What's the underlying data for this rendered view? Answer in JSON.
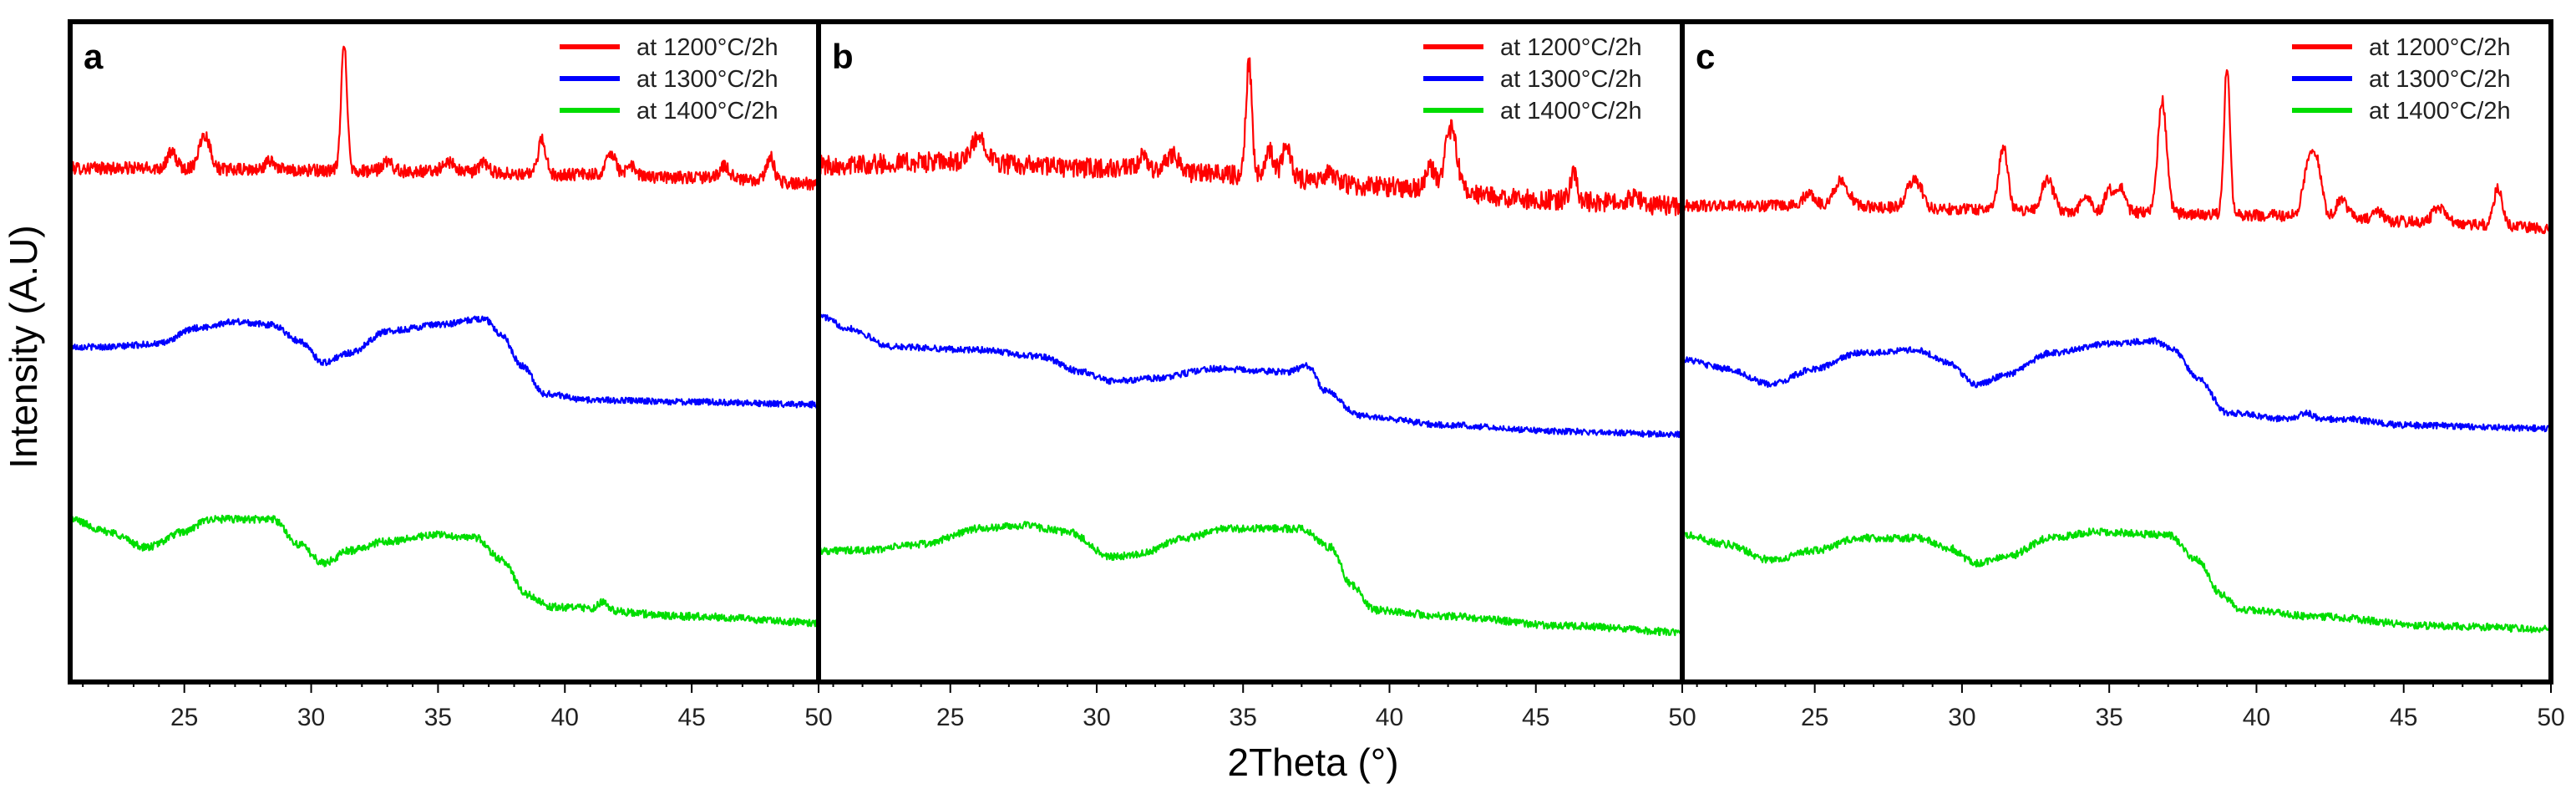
{
  "figure": {
    "ylabel": "Intensity (A.U)",
    "xlabel": "2Theta (°)"
  },
  "chart_data": [
    {
      "type": "line",
      "panel_label": "a",
      "xlim": [
        20.5,
        50
      ],
      "ylim": [
        0,
        100
      ],
      "x_ticks": [
        25,
        30,
        35,
        40,
        45,
        50
      ],
      "x_tick_labels": [
        "25",
        "30",
        "35",
        "40",
        "45",
        "50"
      ],
      "legend_position": "top-right",
      "series": [
        {
          "name": "at 1200°C/2h",
          "color": "#ff0000",
          "baseline": [
            [
              20.5,
              78.5
            ],
            [
              24,
              78.5
            ],
            [
              28,
              78.2
            ],
            [
              34,
              78
            ],
            [
              40,
              77.5
            ],
            [
              45,
              77
            ],
            [
              50,
              76
            ]
          ],
          "peaks": [
            [
              24.5,
              2.5,
              0.18
            ],
            [
              25.8,
              5.5,
              0.22
            ],
            [
              28.4,
              1.5,
              0.2
            ],
            [
              31.3,
              20,
              0.12
            ],
            [
              33.0,
              1.5,
              0.2
            ],
            [
              35.4,
              1.5,
              0.25
            ],
            [
              36.8,
              1.5,
              0.2
            ],
            [
              39.1,
              5.5,
              0.15
            ],
            [
              41.8,
              3.5,
              0.2
            ],
            [
              42.6,
              1.5,
              0.2
            ],
            [
              46.3,
              2,
              0.2
            ],
            [
              48.1,
              4,
              0.15
            ]
          ],
          "noise": 1.0
        },
        {
          "name": "at 1300°C/2h",
          "color": "#0000ff",
          "baseline": [
            [
              20.5,
              50
            ],
            [
              22,
              50
            ],
            [
              24,
              50.5
            ],
            [
              25.5,
              53
            ],
            [
              27,
              54
            ],
            [
              28.5,
              53.5
            ],
            [
              29.5,
              51
            ],
            [
              30.5,
              47.5
            ],
            [
              31.5,
              49
            ],
            [
              33,
              52.5
            ],
            [
              35,
              53.5
            ],
            [
              36.8,
              54.5
            ],
            [
              37.5,
              52
            ],
            [
              38.3,
              47
            ],
            [
              39.2,
              42.5
            ],
            [
              41,
              41.5
            ],
            [
              45,
              41.2
            ],
            [
              50,
              40.8
            ]
          ],
          "peaks": [],
          "noise": 0.5
        },
        {
          "name": "at 1400°C/2h",
          "color": "#00dd00",
          "baseline": [
            [
              20.5,
              22.5
            ],
            [
              22,
              20.5
            ],
            [
              23.5,
              18
            ],
            [
              25,
              20.5
            ],
            [
              26,
              22.5
            ],
            [
              28.5,
              22.5
            ],
            [
              29.5,
              18.5
            ],
            [
              30.5,
              15.5
            ],
            [
              31.5,
              17.5
            ],
            [
              33,
              19
            ],
            [
              35,
              20
            ],
            [
              36.5,
              19.5
            ],
            [
              37.5,
              16
            ],
            [
              38.5,
              10.5
            ],
            [
              39.5,
              8.5
            ],
            [
              45,
              7
            ],
            [
              50,
              6
            ]
          ],
          "peaks": [
            [
              41.5,
              1.2,
              0.2
            ]
          ],
          "noise": 0.6
        }
      ]
    },
    {
      "type": "line",
      "panel_label": "b",
      "xlim": [
        20.5,
        50
      ],
      "ylim": [
        0,
        100
      ],
      "x_ticks": [
        25,
        30,
        35,
        40,
        45,
        50
      ],
      "x_tick_labels": [
        "25",
        "30",
        "35",
        "40",
        "45",
        "50"
      ],
      "legend_position": "top-right",
      "series": [
        {
          "name": "at 1200°C/2h",
          "color": "#ff0000",
          "baseline": [
            [
              20.5,
              79
            ],
            [
              25,
              79.5
            ],
            [
              30,
              78.5
            ],
            [
              35,
              77.5
            ],
            [
              40,
              75.5
            ],
            [
              45,
              73.5
            ],
            [
              50,
              72.5
            ]
          ],
          "peaks": [
            [
              26.0,
              4,
              0.25
            ],
            [
              31.6,
              2,
              0.15
            ],
            [
              32.6,
              3,
              0.2
            ],
            [
              35.2,
              18,
              0.1
            ],
            [
              35.9,
              4,
              0.15
            ],
            [
              36.5,
              5,
              0.15
            ],
            [
              38.0,
              1.5,
              0.2
            ],
            [
              41.4,
              3.5,
              0.15
            ],
            [
              42.1,
              10,
              0.2
            ],
            [
              46.3,
              4,
              0.12
            ],
            [
              48.3,
              1.2,
              0.2
            ]
          ],
          "noise": 1.6
        },
        {
          "name": "at 1300°C/2h",
          "color": "#0000ff",
          "baseline": [
            [
              20.5,
              55
            ],
            [
              21.5,
              53
            ],
            [
              23,
              50
            ],
            [
              26,
              49.5
            ],
            [
              28,
              48.5
            ],
            [
              29.5,
              46
            ],
            [
              30.5,
              44.5
            ],
            [
              32,
              45
            ],
            [
              34,
              46.5
            ],
            [
              36.5,
              46
            ],
            [
              37.2,
              47
            ],
            [
              37.8,
              43
            ],
            [
              39,
              39
            ],
            [
              42,
              37.5
            ],
            [
              46,
              36.5
            ],
            [
              50,
              36
            ]
          ],
          "peaks": [],
          "noise": 0.5
        },
        {
          "name": "at 1400°C/2h",
          "color": "#00dd00",
          "baseline": [
            [
              20.5,
              17.5
            ],
            [
              22,
              17.5
            ],
            [
              24,
              18.5
            ],
            [
              26,
              21
            ],
            [
              27.5,
              21.5
            ],
            [
              29,
              20.5
            ],
            [
              30.5,
              16.5
            ],
            [
              31.5,
              17
            ],
            [
              33,
              19.5
            ],
            [
              34.5,
              21
            ],
            [
              37,
              21
            ],
            [
              38,
              18
            ],
            [
              38.7,
              12
            ],
            [
              39.5,
              8
            ],
            [
              42,
              7
            ],
            [
              46,
              5.5
            ],
            [
              50,
              4.5
            ]
          ],
          "peaks": [],
          "noise": 0.6
        }
      ]
    },
    {
      "type": "line",
      "panel_label": "c",
      "xlim": [
        20.5,
        50
      ],
      "ylim": [
        0,
        100
      ],
      "x_ticks": [
        25,
        30,
        35,
        40,
        45,
        50
      ],
      "x_tick_labels": [
        "25",
        "30",
        "35",
        "40",
        "45",
        "50"
      ],
      "legend_position": "top-right",
      "series": [
        {
          "name": "at 1200°C/2h",
          "color": "#ff0000",
          "baseline": [
            [
              20.5,
              72.5
            ],
            [
              25,
              72.5
            ],
            [
              30,
              72
            ],
            [
              35,
              71.5
            ],
            [
              40,
              71
            ],
            [
              45,
              70
            ],
            [
              50,
              69
            ]
          ],
          "peaks": [
            [
              24.8,
              2,
              0.2
            ],
            [
              25.9,
              4,
              0.25
            ],
            [
              28.3,
              4,
              0.2
            ],
            [
              28.6,
              2,
              0.15
            ],
            [
              31.4,
              10,
              0.15
            ],
            [
              32.9,
              5,
              0.2
            ],
            [
              34.2,
              3,
              0.15
            ],
            [
              35.0,
              3.5,
              0.15
            ],
            [
              35.4,
              4,
              0.15
            ],
            [
              36.8,
              18,
              0.15
            ],
            [
              39.0,
              24,
              0.1
            ],
            [
              41.8,
              9,
              0.2
            ],
            [
              42.1,
              6,
              0.15
            ],
            [
              42.9,
              3,
              0.2
            ],
            [
              44.1,
              1.5,
              0.2
            ],
            [
              46.2,
              2.5,
              0.2
            ],
            [
              48.2,
              6,
              0.15
            ]
          ],
          "noise": 0.9
        },
        {
          "name": "at 1300°C/2h",
          "color": "#0000ff",
          "baseline": [
            [
              20.5,
              48
            ],
            [
              22,
              46.5
            ],
            [
              23.5,
              44
            ],
            [
              25,
              46.5
            ],
            [
              26.5,
              49
            ],
            [
              28.5,
              49.5
            ],
            [
              29.5,
              47.5
            ],
            [
              30.5,
              44
            ],
            [
              31.5,
              45.5
            ],
            [
              33,
              49
            ],
            [
              35,
              50.5
            ],
            [
              36.5,
              51
            ],
            [
              37.2,
              49.5
            ],
            [
              38,
              45
            ],
            [
              39,
              39.5
            ],
            [
              41,
              38.5
            ],
            [
              43,
              38.5
            ],
            [
              45,
              37.5
            ],
            [
              50,
              37
            ]
          ],
          "peaks": [
            [
              41.7,
              1,
              0.2
            ]
          ],
          "noise": 0.5
        },
        {
          "name": "at 1400°C/2h",
          "color": "#00dd00",
          "baseline": [
            [
              20.5,
              20
            ],
            [
              22,
              18.5
            ],
            [
              23.5,
              16
            ],
            [
              25,
              17.5
            ],
            [
              26.5,
              19.5
            ],
            [
              28.5,
              19.5
            ],
            [
              29.5,
              18
            ],
            [
              30.5,
              15.5
            ],
            [
              31.5,
              16.5
            ],
            [
              33,
              19.5
            ],
            [
              34.5,
              20.5
            ],
            [
              37,
              20
            ],
            [
              38,
              16
            ],
            [
              38.8,
              10.5
            ],
            [
              39.5,
              8
            ],
            [
              42,
              7
            ],
            [
              46,
              5.5
            ],
            [
              50,
              5
            ]
          ],
          "peaks": [],
          "noise": 0.6
        }
      ]
    }
  ]
}
